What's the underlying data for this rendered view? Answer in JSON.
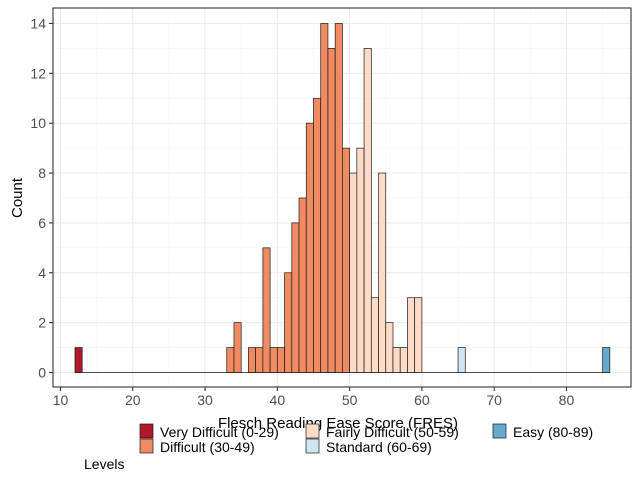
{
  "chart_data": {
    "type": "bar",
    "title": "",
    "xlabel": "Flesch Reading Ease Score (FRES)",
    "ylabel": "Count",
    "xlim": [
      10,
      87
    ],
    "ylim": [
      0,
      14
    ],
    "x_ticks": [
      10,
      20,
      30,
      40,
      50,
      60,
      70,
      80
    ],
    "y_ticks": [
      0,
      2,
      4,
      6,
      8,
      10,
      12,
      14
    ],
    "grid": true,
    "legend_position": "bottom",
    "legend_title": "Levels",
    "bin_width": 1,
    "levels": [
      {
        "name": "Very Difficult (0-29)",
        "color": "#b2182b"
      },
      {
        "name": "Difficult (30-49)",
        "color": "#ef8a62"
      },
      {
        "name": "Fairly Difficult (50-59)",
        "color": "#fddbc7"
      },
      {
        "name": "Standard (60-69)",
        "color": "#d1e5f0"
      },
      {
        "name": "Easy (80-89)",
        "color": "#67a9cf"
      }
    ],
    "bins": [
      {
        "start": 12,
        "count": 1,
        "level": 0
      },
      {
        "start": 33,
        "count": 1,
        "level": 1
      },
      {
        "start": 34,
        "count": 2,
        "level": 1
      },
      {
        "start": 36,
        "count": 1,
        "level": 1
      },
      {
        "start": 37,
        "count": 1,
        "level": 1
      },
      {
        "start": 38,
        "count": 5,
        "level": 1
      },
      {
        "start": 39,
        "count": 1,
        "level": 1
      },
      {
        "start": 40,
        "count": 1,
        "level": 1
      },
      {
        "start": 41,
        "count": 4,
        "level": 1
      },
      {
        "start": 42,
        "count": 6,
        "level": 1
      },
      {
        "start": 43,
        "count": 7,
        "level": 1
      },
      {
        "start": 44,
        "count": 10,
        "level": 1
      },
      {
        "start": 45,
        "count": 11,
        "level": 1
      },
      {
        "start": 46,
        "count": 14,
        "level": 1
      },
      {
        "start": 47,
        "count": 13,
        "level": 1
      },
      {
        "start": 48,
        "count": 14,
        "level": 1
      },
      {
        "start": 49,
        "count": 9,
        "level": 1
      },
      {
        "start": 50,
        "count": 8,
        "level": 2
      },
      {
        "start": 51,
        "count": 9,
        "level": 2
      },
      {
        "start": 52,
        "count": 13,
        "level": 2
      },
      {
        "start": 53,
        "count": 3,
        "level": 2
      },
      {
        "start": 54,
        "count": 8,
        "level": 2
      },
      {
        "start": 55,
        "count": 2,
        "level": 2
      },
      {
        "start": 56,
        "count": 1,
        "level": 2
      },
      {
        "start": 57,
        "count": 1,
        "level": 2
      },
      {
        "start": 58,
        "count": 3,
        "level": 2
      },
      {
        "start": 59,
        "count": 3,
        "level": 2
      },
      {
        "start": 65,
        "count": 1,
        "level": 3
      },
      {
        "start": 85,
        "count": 1,
        "level": 4
      }
    ]
  }
}
